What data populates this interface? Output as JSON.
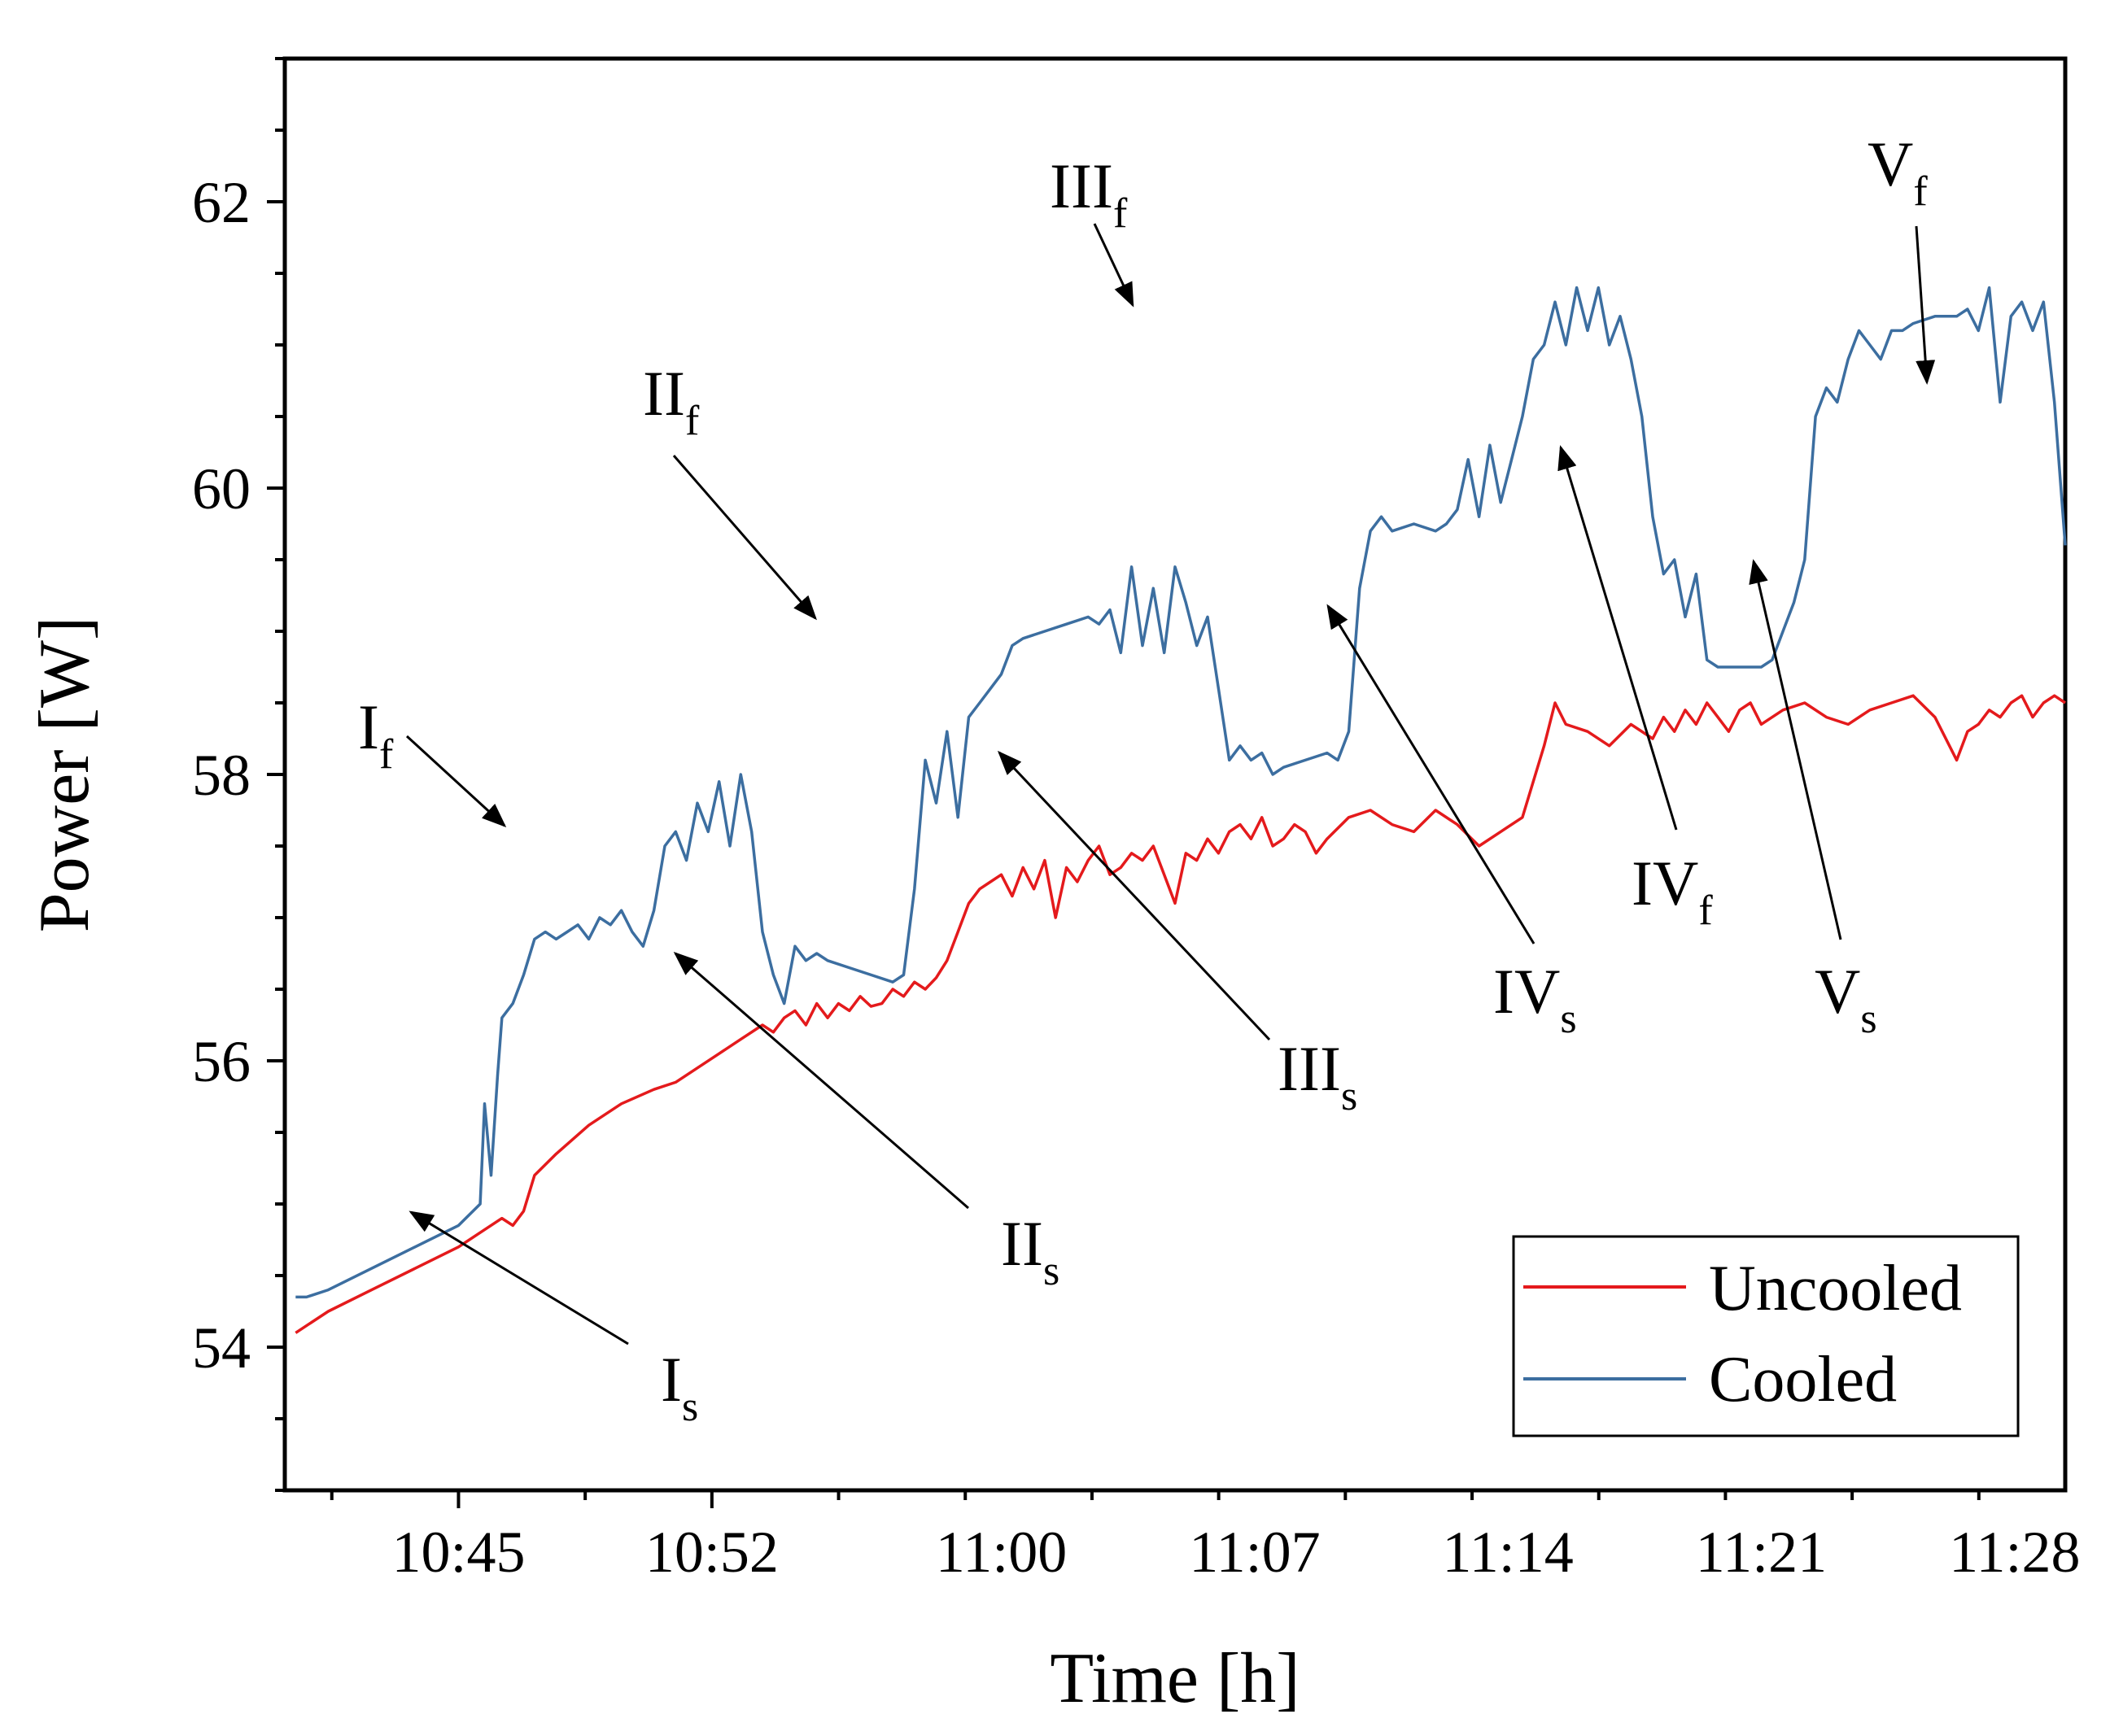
{
  "chart_data": {
    "type": "line",
    "xlabel": "Time [h]",
    "ylabel": "Power [W]",
    "xlim": [
      10.67,
      11.49
    ],
    "ylim": [
      53,
      63
    ],
    "x_ticks": [
      {
        "value": 10.75,
        "label": "10:45"
      },
      {
        "value": 10.8667,
        "label": "10:52"
      },
      {
        "value": 11.0,
        "label": "11:00"
      },
      {
        "value": 11.1167,
        "label": "11:07"
      },
      {
        "value": 11.2333,
        "label": "11:14"
      },
      {
        "value": 11.35,
        "label": "11:21"
      },
      {
        "value": 11.4667,
        "label": "11:28"
      }
    ],
    "y_ticks": [
      {
        "value": 54,
        "label": "54"
      },
      {
        "value": 56,
        "label": "56"
      },
      {
        "value": 58,
        "label": "58"
      },
      {
        "value": 60,
        "label": "60"
      },
      {
        "value": 62,
        "label": "62"
      }
    ],
    "legend": {
      "position": "bottom-right"
    },
    "series": [
      {
        "name": "Uncooled",
        "color": "#e41a1c",
        "points": [
          [
            10.675,
            54.1
          ],
          [
            10.69,
            54.25
          ],
          [
            10.71,
            54.4
          ],
          [
            10.73,
            54.55
          ],
          [
            10.75,
            54.7
          ],
          [
            10.76,
            54.8
          ],
          [
            10.77,
            54.9
          ],
          [
            10.775,
            54.85
          ],
          [
            10.78,
            54.95
          ],
          [
            10.785,
            55.2
          ],
          [
            10.795,
            55.35
          ],
          [
            10.81,
            55.55
          ],
          [
            10.825,
            55.7
          ],
          [
            10.84,
            55.8
          ],
          [
            10.85,
            55.85
          ],
          [
            10.86,
            55.95
          ],
          [
            10.87,
            56.05
          ],
          [
            10.88,
            56.15
          ],
          [
            10.89,
            56.25
          ],
          [
            10.895,
            56.2
          ],
          [
            10.9,
            56.3
          ],
          [
            10.905,
            56.35
          ],
          [
            10.91,
            56.25
          ],
          [
            10.915,
            56.4
          ],
          [
            10.92,
            56.3
          ],
          [
            10.925,
            56.4
          ],
          [
            10.93,
            56.35
          ],
          [
            10.935,
            56.45
          ],
          [
            10.94,
            56.38
          ],
          [
            10.945,
            56.4
          ],
          [
            10.95,
            56.5
          ],
          [
            10.955,
            56.45
          ],
          [
            10.96,
            56.55
          ],
          [
            10.965,
            56.5
          ],
          [
            10.97,
            56.58
          ],
          [
            10.975,
            56.7
          ],
          [
            10.98,
            56.9
          ],
          [
            10.985,
            57.1
          ],
          [
            10.99,
            57.2
          ],
          [
            10.995,
            57.25
          ],
          [
            11.0,
            57.3
          ],
          [
            11.005,
            57.15
          ],
          [
            11.01,
            57.35
          ],
          [
            11.015,
            57.2
          ],
          [
            11.02,
            57.4
          ],
          [
            11.025,
            57.0
          ],
          [
            11.03,
            57.35
          ],
          [
            11.035,
            57.25
          ],
          [
            11.04,
            57.4
          ],
          [
            11.045,
            57.5
          ],
          [
            11.05,
            57.3
          ],
          [
            11.055,
            57.35
          ],
          [
            11.06,
            57.45
          ],
          [
            11.065,
            57.4
          ],
          [
            11.07,
            57.5
          ],
          [
            11.075,
            57.3
          ],
          [
            11.08,
            57.1
          ],
          [
            11.085,
            57.45
          ],
          [
            11.09,
            57.4
          ],
          [
            11.095,
            57.55
          ],
          [
            11.1,
            57.45
          ],
          [
            11.105,
            57.6
          ],
          [
            11.11,
            57.65
          ],
          [
            11.115,
            57.55
          ],
          [
            11.12,
            57.7
          ],
          [
            11.125,
            57.5
          ],
          [
            11.13,
            57.55
          ],
          [
            11.135,
            57.65
          ],
          [
            11.14,
            57.6
          ],
          [
            11.145,
            57.45
          ],
          [
            11.15,
            57.55
          ],
          [
            11.16,
            57.7
          ],
          [
            11.17,
            57.75
          ],
          [
            11.18,
            57.65
          ],
          [
            11.19,
            57.6
          ],
          [
            11.2,
            57.75
          ],
          [
            11.21,
            57.65
          ],
          [
            11.22,
            57.5
          ],
          [
            11.23,
            57.6
          ],
          [
            11.24,
            57.7
          ],
          [
            11.25,
            58.2
          ],
          [
            11.255,
            58.5
          ],
          [
            11.26,
            58.35
          ],
          [
            11.27,
            58.3
          ],
          [
            11.28,
            58.2
          ],
          [
            11.29,
            58.35
          ],
          [
            11.3,
            58.25
          ],
          [
            11.305,
            58.4
          ],
          [
            11.31,
            58.3
          ],
          [
            11.315,
            58.45
          ],
          [
            11.32,
            58.35
          ],
          [
            11.325,
            58.5
          ],
          [
            11.33,
            58.4
          ],
          [
            11.335,
            58.3
          ],
          [
            11.34,
            58.45
          ],
          [
            11.345,
            58.5
          ],
          [
            11.35,
            58.35
          ],
          [
            11.36,
            58.45
          ],
          [
            11.37,
            58.5
          ],
          [
            11.38,
            58.4
          ],
          [
            11.39,
            58.35
          ],
          [
            11.4,
            58.45
          ],
          [
            11.41,
            58.5
          ],
          [
            11.42,
            58.55
          ],
          [
            11.43,
            58.4
          ],
          [
            11.44,
            58.1
          ],
          [
            11.445,
            58.3
          ],
          [
            11.45,
            58.35
          ],
          [
            11.455,
            58.45
          ],
          [
            11.46,
            58.4
          ],
          [
            11.465,
            58.5
          ],
          [
            11.47,
            58.55
          ],
          [
            11.475,
            58.4
          ],
          [
            11.48,
            58.5
          ],
          [
            11.485,
            58.55
          ],
          [
            11.49,
            58.5
          ]
        ]
      },
      {
        "name": "Cooled",
        "color": "#3c6ea0",
        "points": [
          [
            10.675,
            54.35
          ],
          [
            10.68,
            54.35
          ],
          [
            10.69,
            54.4
          ],
          [
            10.71,
            54.55
          ],
          [
            10.73,
            54.7
          ],
          [
            10.75,
            54.85
          ],
          [
            10.76,
            55.0
          ],
          [
            10.762,
            55.7
          ],
          [
            10.765,
            55.2
          ],
          [
            10.768,
            55.9
          ],
          [
            10.77,
            56.3
          ],
          [
            10.775,
            56.4
          ],
          [
            10.78,
            56.6
          ],
          [
            10.785,
            56.85
          ],
          [
            10.79,
            56.9
          ],
          [
            10.795,
            56.85
          ],
          [
            10.8,
            56.9
          ],
          [
            10.805,
            56.95
          ],
          [
            10.81,
            56.85
          ],
          [
            10.815,
            57.0
          ],
          [
            10.82,
            56.95
          ],
          [
            10.825,
            57.05
          ],
          [
            10.83,
            56.9
          ],
          [
            10.835,
            56.8
          ],
          [
            10.84,
            57.05
          ],
          [
            10.845,
            57.5
          ],
          [
            10.85,
            57.6
          ],
          [
            10.855,
            57.4
          ],
          [
            10.86,
            57.8
          ],
          [
            10.865,
            57.6
          ],
          [
            10.87,
            57.95
          ],
          [
            10.875,
            57.5
          ],
          [
            10.88,
            58.0
          ],
          [
            10.885,
            57.6
          ],
          [
            10.89,
            56.9
          ],
          [
            10.895,
            56.6
          ],
          [
            10.9,
            56.4
          ],
          [
            10.905,
            56.8
          ],
          [
            10.91,
            56.7
          ],
          [
            10.915,
            56.75
          ],
          [
            10.92,
            56.7
          ],
          [
            10.93,
            56.65
          ],
          [
            10.94,
            56.6
          ],
          [
            10.95,
            56.55
          ],
          [
            10.955,
            56.6
          ],
          [
            10.96,
            57.2
          ],
          [
            10.965,
            58.1
          ],
          [
            10.97,
            57.8
          ],
          [
            10.975,
            58.3
          ],
          [
            10.98,
            57.7
          ],
          [
            10.985,
            58.4
          ],
          [
            10.99,
            58.5
          ],
          [
            10.995,
            58.6
          ],
          [
            11.0,
            58.7
          ],
          [
            11.005,
            58.9
          ],
          [
            11.01,
            58.95
          ],
          [
            11.02,
            59.0
          ],
          [
            11.03,
            59.05
          ],
          [
            11.04,
            59.1
          ],
          [
            11.045,
            59.05
          ],
          [
            11.05,
            59.15
          ],
          [
            11.055,
            58.85
          ],
          [
            11.06,
            59.45
          ],
          [
            11.065,
            58.9
          ],
          [
            11.07,
            59.3
          ],
          [
            11.075,
            58.85
          ],
          [
            11.08,
            59.45
          ],
          [
            11.085,
            59.2
          ],
          [
            11.09,
            58.9
          ],
          [
            11.095,
            59.1
          ],
          [
            11.1,
            58.6
          ],
          [
            11.105,
            58.1
          ],
          [
            11.11,
            58.2
          ],
          [
            11.115,
            58.1
          ],
          [
            11.12,
            58.15
          ],
          [
            11.125,
            58.0
          ],
          [
            11.13,
            58.05
          ],
          [
            11.14,
            58.1
          ],
          [
            11.15,
            58.15
          ],
          [
            11.155,
            58.1
          ],
          [
            11.16,
            58.3
          ],
          [
            11.165,
            59.3
          ],
          [
            11.17,
            59.7
          ],
          [
            11.175,
            59.8
          ],
          [
            11.18,
            59.7
          ],
          [
            11.19,
            59.75
          ],
          [
            11.2,
            59.7
          ],
          [
            11.205,
            59.75
          ],
          [
            11.21,
            59.85
          ],
          [
            11.215,
            60.2
          ],
          [
            11.22,
            59.8
          ],
          [
            11.225,
            60.3
          ],
          [
            11.23,
            59.9
          ],
          [
            11.235,
            60.2
          ],
          [
            11.24,
            60.5
          ],
          [
            11.245,
            60.9
          ],
          [
            11.25,
            61.0
          ],
          [
            11.255,
            61.3
          ],
          [
            11.26,
            61.0
          ],
          [
            11.265,
            61.4
          ],
          [
            11.27,
            61.1
          ],
          [
            11.275,
            61.4
          ],
          [
            11.28,
            61.0
          ],
          [
            11.285,
            61.2
          ],
          [
            11.29,
            60.9
          ],
          [
            11.295,
            60.5
          ],
          [
            11.3,
            59.8
          ],
          [
            11.305,
            59.4
          ],
          [
            11.31,
            59.5
          ],
          [
            11.315,
            59.1
          ],
          [
            11.32,
            59.4
          ],
          [
            11.325,
            58.8
          ],
          [
            11.33,
            58.75
          ],
          [
            11.34,
            58.75
          ],
          [
            11.35,
            58.75
          ],
          [
            11.355,
            58.8
          ],
          [
            11.36,
            59.0
          ],
          [
            11.365,
            59.2
          ],
          [
            11.37,
            59.5
          ],
          [
            11.375,
            60.5
          ],
          [
            11.38,
            60.7
          ],
          [
            11.385,
            60.6
          ],
          [
            11.39,
            60.9
          ],
          [
            11.395,
            61.1
          ],
          [
            11.4,
            61.0
          ],
          [
            11.405,
            60.9
          ],
          [
            11.41,
            61.1
          ],
          [
            11.415,
            61.1
          ],
          [
            11.42,
            61.15
          ],
          [
            11.43,
            61.2
          ],
          [
            11.44,
            61.2
          ],
          [
            11.445,
            61.25
          ],
          [
            11.45,
            61.1
          ],
          [
            11.455,
            61.4
          ],
          [
            11.46,
            60.6
          ],
          [
            11.465,
            61.2
          ],
          [
            11.47,
            61.3
          ],
          [
            11.475,
            61.1
          ],
          [
            11.48,
            61.3
          ],
          [
            11.485,
            60.6
          ],
          [
            11.49,
            59.6
          ]
        ]
      }
    ],
    "annotations": [
      {
        "id": "If",
        "main": "I",
        "sub": "f"
      },
      {
        "id": "Is",
        "main": "I",
        "sub": "s"
      },
      {
        "id": "IIf",
        "main": "II",
        "sub": "f"
      },
      {
        "id": "IIs",
        "main": "II",
        "sub": "s"
      },
      {
        "id": "IIIf",
        "main": "III",
        "sub": "f"
      },
      {
        "id": "IIIs",
        "main": "III",
        "sub": "s"
      },
      {
        "id": "IVf",
        "main": "IV",
        "sub": "f"
      },
      {
        "id": "IVs",
        "main": "IV",
        "sub": "s"
      },
      {
        "id": "Vf",
        "main": "V",
        "sub": "f"
      },
      {
        "id": "Vs",
        "main": "V",
        "sub": "s"
      }
    ]
  }
}
